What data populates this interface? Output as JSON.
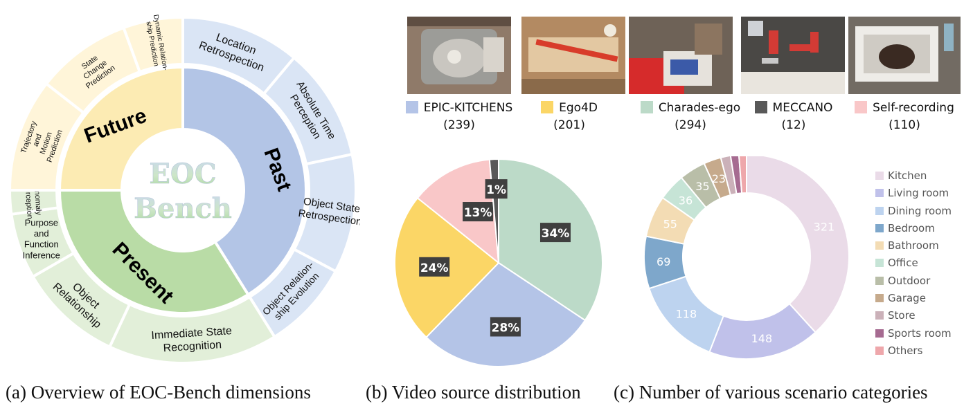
{
  "chart_data": [
    {
      "type": "sunburst",
      "center_text": [
        "EOC",
        "Bench"
      ],
      "groups": [
        {
          "name": "Past",
          "color": "#b3c5e6",
          "outer_color": "#dae5f5",
          "children": [
            "Location Retrospection",
            "Absolute Time Perception",
            "Object State Retrospection",
            "Object Relation-ship Evolution"
          ]
        },
        {
          "name": "Present",
          "color": "#b9dca6",
          "outer_color": "#e2efd9",
          "children": [
            "Immediate State Recognition",
            "Object Relationship",
            "Purpose and Function Inference",
            "Anomaly Perception"
          ]
        },
        {
          "name": "Future",
          "color": "#fcebb3",
          "outer_color": "#fff5d9",
          "children": [
            "Trajectory and Motion Prediction",
            "State Change Prediction",
            "Dynamic Relation-ship Prediction"
          ]
        }
      ],
      "caption": "(a) Overview of EOC-Bench dimensions"
    },
    {
      "type": "pie",
      "legend": [
        {
          "label": "EPIC-KITCHENS",
          "count": "(239)",
          "color": "#b4c4e7"
        },
        {
          "label": "Ego4D",
          "count": "(201)",
          "color": "#fbd666"
        },
        {
          "label": "Charades-ego",
          "count": "(294)",
          "color": "#bcdac8"
        },
        {
          "label": "MECCANO",
          "count": "(12)",
          "color": "#595959"
        },
        {
          "label": "Self-recording",
          "count": "(110)",
          "color": "#f9c7c8"
        }
      ],
      "slices": [
        {
          "label": "34%",
          "value": 294,
          "color": "#bcdac8"
        },
        {
          "label": "28%",
          "value": 239,
          "color": "#b4c4e7"
        },
        {
          "label": "24%",
          "value": 201,
          "color": "#fbd666"
        },
        {
          "label": "13%",
          "value": 110,
          "color": "#f9c7c8"
        },
        {
          "label": "1%",
          "value": 12,
          "color": "#595959"
        }
      ],
      "caption": "(b) Video source distribution"
    },
    {
      "type": "donut",
      "slices": [
        {
          "name": "Kitchen",
          "value": 321,
          "color": "#eadbe8"
        },
        {
          "name": "Living room",
          "value": 148,
          "color": "#c0c1ea"
        },
        {
          "name": "Dining room",
          "value": 118,
          "color": "#bdd3ef"
        },
        {
          "name": "Bedroom",
          "value": 69,
          "color": "#7ea7cb"
        },
        {
          "name": "Bathroom",
          "value": 55,
          "color": "#f3dcb4"
        },
        {
          "name": "Office",
          "value": 36,
          "color": "#c6e4d6"
        },
        {
          "name": "Outdoor",
          "value": 35,
          "color": "#b9bea8"
        },
        {
          "name": "Garage",
          "value": 23,
          "color": "#c6aa8c"
        },
        {
          "name": "Store",
          "value": 13,
          "color": "#cbb1b9"
        },
        {
          "name": "Sports room",
          "value": 11,
          "color": "#a66b91"
        },
        {
          "name": "Others",
          "value": 10,
          "color": "#eea7ab"
        }
      ],
      "value_labels_shown": [
        "321",
        "148",
        "118",
        "69",
        "55",
        "36",
        "35",
        "23"
      ],
      "caption": "(c) Number of various scenario categories"
    }
  ],
  "thumbnails": [
    {
      "name": "sink-dishwashing",
      "bg": "#8f7a69"
    },
    {
      "name": "wood-workbench",
      "bg": "#b38a62"
    },
    {
      "name": "desk-clamp",
      "bg": "#6e6257"
    },
    {
      "name": "meccano-parts",
      "bg": "#4a4845"
    },
    {
      "name": "pot-in-sink",
      "bg": "#726b63"
    }
  ]
}
